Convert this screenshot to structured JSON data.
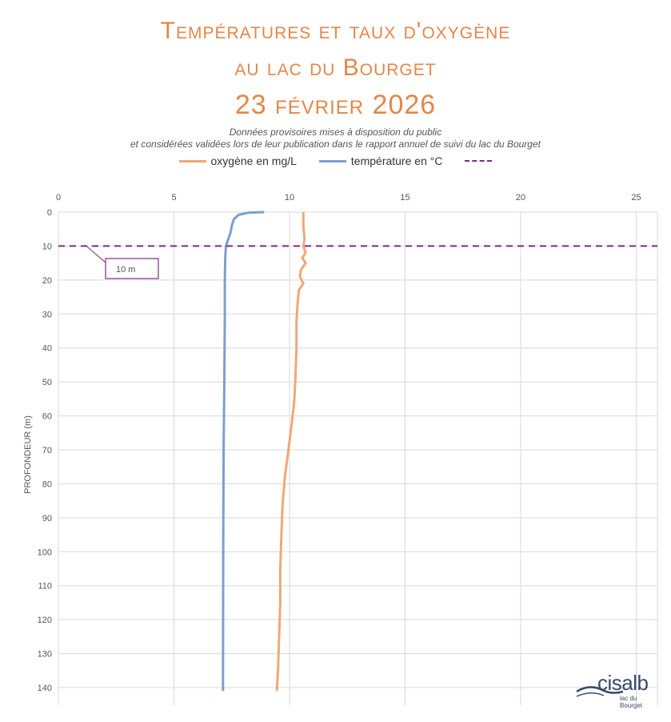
{
  "title": {
    "line1": "Températures et taux d'oxygène",
    "line2": "au lac du Bourget",
    "line3": "23 février 2026"
  },
  "subtitle": {
    "line1": "Données provisoires mises à disposition du public",
    "line2": "et considérées validées lors de leur publication dans le rapport annuel de suivi du lac du Bourget"
  },
  "legend": {
    "oxygen": "oxygène en mg/L",
    "temperature": "température en °C",
    "dashed": ""
  },
  "logo": {
    "name": "cisalb",
    "tagline": "lac du Bourget"
  },
  "colors": {
    "oxygen": "#F0A878",
    "temperature": "#7F9ECF",
    "threshold": "#7B2C86",
    "title": "#E3874A"
  },
  "chart_data": {
    "type": "line",
    "title": "Températures et taux d'oxygène au lac du Bourget — 23 février 2026",
    "xlabel": "",
    "ylabel": "PROFONDEUR (m)",
    "xlim": [
      0,
      25
    ],
    "ylim": [
      0,
      140
    ],
    "y_inverted": true,
    "x_axis_position": "top",
    "x_ticks": [
      0,
      5,
      10,
      15,
      20,
      25
    ],
    "y_ticks": [
      0,
      10,
      20,
      30,
      40,
      50,
      60,
      70,
      80,
      90,
      100,
      110,
      120,
      130,
      140
    ],
    "grid": true,
    "legend_position": "top",
    "series": [
      {
        "name": "oxygène en mg/L",
        "color": "#F0A878",
        "points": [
          [
            10.6,
            0
          ],
          [
            10.6,
            4
          ],
          [
            10.65,
            8
          ],
          [
            10.6,
            10
          ],
          [
            10.7,
            12
          ],
          [
            10.55,
            13.5
          ],
          [
            10.7,
            15
          ],
          [
            10.5,
            17
          ],
          [
            10.45,
            19
          ],
          [
            10.6,
            21
          ],
          [
            10.4,
            23
          ],
          [
            10.35,
            27
          ],
          [
            10.3,
            32
          ],
          [
            10.3,
            40
          ],
          [
            10.25,
            50
          ],
          [
            10.2,
            56
          ],
          [
            10.1,
            62
          ],
          [
            9.95,
            70
          ],
          [
            9.8,
            78
          ],
          [
            9.7,
            86
          ],
          [
            9.65,
            95
          ],
          [
            9.6,
            105
          ],
          [
            9.6,
            115
          ],
          [
            9.55,
            125
          ],
          [
            9.5,
            135
          ],
          [
            9.45,
            141
          ]
        ]
      },
      {
        "name": "température en °C",
        "color": "#7F9ECF",
        "points": [
          [
            8.9,
            0
          ],
          [
            8.2,
            0.2
          ],
          [
            7.8,
            0.8
          ],
          [
            7.6,
            2
          ],
          [
            7.5,
            4
          ],
          [
            7.45,
            6
          ],
          [
            7.35,
            8
          ],
          [
            7.25,
            10
          ],
          [
            7.22,
            13
          ],
          [
            7.2,
            20
          ],
          [
            7.2,
            30
          ],
          [
            7.18,
            50
          ],
          [
            7.15,
            70
          ],
          [
            7.13,
            100
          ],
          [
            7.12,
            141
          ]
        ]
      }
    ],
    "reference_line": {
      "y": 10,
      "label": "10 m"
    }
  }
}
